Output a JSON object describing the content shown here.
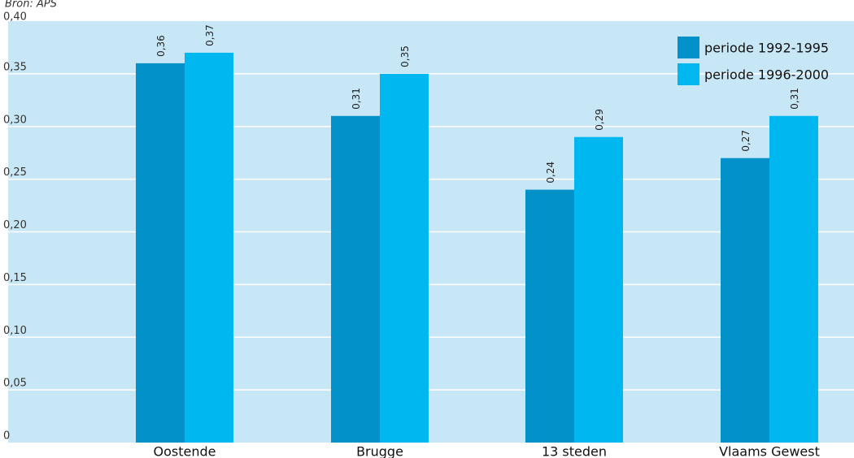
{
  "source_note": "Bron: APS",
  "colors": {
    "background": "#c7e7f6",
    "series1": "#0391c9",
    "series2": "#00b8ef",
    "grid": "#ffffff"
  },
  "chart_data": {
    "type": "bar",
    "categories": [
      "Oostende",
      "Brugge",
      "13 steden",
      "Vlaams Gewest"
    ],
    "series": [
      {
        "name": "periode 1992-1995",
        "values": [
          0.36,
          0.31,
          0.24,
          0.27
        ],
        "labels": [
          "0,36",
          "0,31",
          "0,24",
          "0,27"
        ]
      },
      {
        "name": "periode 1996-2000",
        "values": [
          0.37,
          0.35,
          0.29,
          0.31
        ],
        "labels": [
          "0,37",
          "0,35",
          "0,29",
          "0,31"
        ]
      }
    ],
    "title": "",
    "xlabel": "",
    "ylabel": "",
    "ylim": [
      0,
      0.4
    ],
    "yticks": [
      0,
      0.05,
      0.1,
      0.15,
      0.2,
      0.25,
      0.3,
      0.35,
      0.4
    ],
    "ytick_labels": [
      "0",
      "0,05",
      "0,10",
      "0,15",
      "0,20",
      "0,25",
      "0,30",
      "0,35",
      "0,40"
    ],
    "grid": true,
    "legend": "top-right"
  }
}
